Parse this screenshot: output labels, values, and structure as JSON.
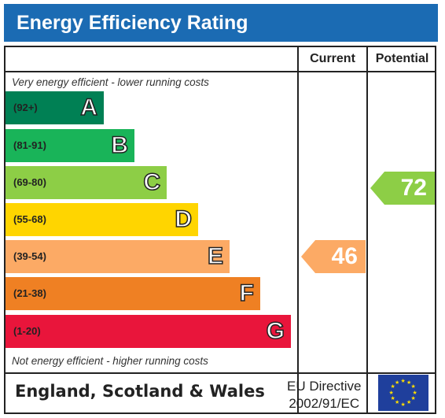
{
  "title": "Energy Efficiency Rating",
  "columns": {
    "current": "Current",
    "potential": "Potential"
  },
  "top_note": "Very energy efficient - lower running costs",
  "bottom_note": "Not energy efficient - higher running costs",
  "bands": [
    {
      "range": "(92+)",
      "letter": "A",
      "color": "#008054"
    },
    {
      "range": "(81-91)",
      "letter": "B",
      "color": "#19b459"
    },
    {
      "range": "(69-80)",
      "letter": "C",
      "color": "#8dce46"
    },
    {
      "range": "(55-68)",
      "letter": "D",
      "color": "#ffd500"
    },
    {
      "range": "(39-54)",
      "letter": "E",
      "color": "#fcaa65"
    },
    {
      "range": "(21-38)",
      "letter": "F",
      "color": "#ef8023"
    },
    {
      "range": "(1-20)",
      "letter": "G",
      "color": "#e9153b"
    }
  ],
  "current": {
    "value": "46",
    "band": "E",
    "color": "#fcaa65"
  },
  "potential": {
    "value": "72",
    "band": "C",
    "color": "#8dce46"
  },
  "footer": {
    "region": "England, Scotland & Wales",
    "directive_line1": "EU Directive",
    "directive_line2": "2002/91/EC",
    "flag_icon": "eu-flag-icon"
  }
}
